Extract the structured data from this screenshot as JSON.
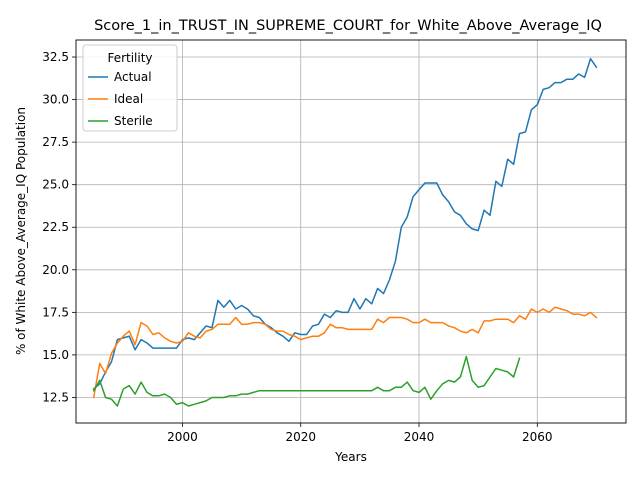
{
  "chart_data": {
    "type": "line",
    "title": "Score_1_in_TRUST_IN_SUPREME_COURT_for_White_Above_Average_IQ",
    "xlabel": "Years",
    "ylabel": "% of White Above_Average_IQ Population",
    "xlim": [
      1982,
      2075
    ],
    "ylim": [
      11.0,
      33.5
    ],
    "x_ticks": [
      2000,
      2020,
      2040,
      2060
    ],
    "y_ticks": [
      12.5,
      15.0,
      17.5,
      20.0,
      22.5,
      25.0,
      27.5,
      30.0,
      32.5
    ],
    "grid": true,
    "legend": {
      "title": "Fertility",
      "placement": "top-left"
    },
    "series": [
      {
        "name": "Actual",
        "color": "#1f77b4",
        "x": [
          1985,
          1986,
          1987,
          1988,
          1989,
          1990,
          1991,
          1992,
          1993,
          1994,
          1995,
          1996,
          1997,
          1998,
          1999,
          2000,
          2001,
          2002,
          2003,
          2004,
          2005,
          2006,
          2007,
          2008,
          2009,
          2010,
          2011,
          2012,
          2013,
          2014,
          2015,
          2016,
          2017,
          2018,
          2019,
          2020,
          2021,
          2022,
          2023,
          2024,
          2025,
          2026,
          2027,
          2028,
          2029,
          2030,
          2031,
          2032,
          2033,
          2034,
          2035,
          2036,
          2037,
          2038,
          2039,
          2040,
          2041,
          2042,
          2043,
          2044,
          2045,
          2046,
          2047,
          2048,
          2049,
          2050,
          2051,
          2052,
          2053,
          2054,
          2055,
          2056,
          2057,
          2058,
          2059,
          2060,
          2061,
          2062,
          2063,
          2064,
          2065,
          2066,
          2067,
          2068,
          2069,
          2070
        ],
        "values": [
          13.0,
          13.3,
          14.0,
          14.6,
          15.9,
          16.0,
          16.1,
          15.3,
          15.9,
          15.7,
          15.4,
          15.4,
          15.4,
          15.4,
          15.4,
          15.9,
          16.0,
          15.9,
          16.3,
          16.7,
          16.6,
          18.2,
          17.8,
          18.2,
          17.7,
          17.9,
          17.7,
          17.3,
          17.2,
          16.8,
          16.6,
          16.3,
          16.1,
          15.8,
          16.3,
          16.2,
          16.2,
          16.7,
          16.8,
          17.4,
          17.2,
          17.6,
          17.5,
          17.5,
          18.3,
          17.7,
          18.3,
          18.0,
          18.9,
          18.6,
          19.4,
          20.5,
          22.5,
          23.1,
          24.3,
          24.7,
          25.1,
          25.1,
          25.1,
          24.4,
          24.0,
          23.4,
          23.2,
          22.7,
          22.4,
          22.3,
          23.5,
          23.2,
          25.2,
          24.9,
          26.5,
          26.2,
          28.0,
          28.1,
          29.4,
          29.7,
          30.6,
          30.7,
          31.0,
          31.0,
          31.2,
          31.2,
          31.5,
          31.3,
          32.4,
          31.9
        ]
      },
      {
        "name": "Ideal",
        "color": "#ff7f0e",
        "x": [
          1985,
          1986,
          1987,
          1988,
          1989,
          1990,
          1991,
          1992,
          1993,
          1994,
          1995,
          1996,
          1997,
          1998,
          1999,
          2000,
          2001,
          2002,
          2003,
          2004,
          2005,
          2006,
          2007,
          2008,
          2009,
          2010,
          2011,
          2012,
          2013,
          2014,
          2015,
          2016,
          2017,
          2018,
          2019,
          2020,
          2021,
          2022,
          2023,
          2024,
          2025,
          2026,
          2027,
          2028,
          2029,
          2030,
          2031,
          2032,
          2033,
          2034,
          2035,
          2036,
          2037,
          2038,
          2039,
          2040,
          2041,
          2042,
          2043,
          2044,
          2045,
          2046,
          2047,
          2048,
          2049,
          2050,
          2051,
          2052,
          2053,
          2054,
          2055,
          2056,
          2057,
          2058,
          2059,
          2060,
          2061,
          2062,
          2063,
          2064,
          2065,
          2066,
          2067,
          2068,
          2069,
          2070
        ],
        "values": [
          12.5,
          14.5,
          13.9,
          15.1,
          15.7,
          16.1,
          16.4,
          15.6,
          16.9,
          16.7,
          16.2,
          16.3,
          16.0,
          15.8,
          15.7,
          15.8,
          16.3,
          16.1,
          16.0,
          16.4,
          16.5,
          16.8,
          16.8,
          16.8,
          17.2,
          16.8,
          16.8,
          16.9,
          16.9,
          16.8,
          16.5,
          16.4,
          16.4,
          16.2,
          16.1,
          15.9,
          16.0,
          16.1,
          16.1,
          16.3,
          16.8,
          16.6,
          16.6,
          16.5,
          16.5,
          16.5,
          16.5,
          16.5,
          17.1,
          16.9,
          17.2,
          17.2,
          17.2,
          17.1,
          16.9,
          16.9,
          17.1,
          16.9,
          16.9,
          16.9,
          16.7,
          16.6,
          16.4,
          16.3,
          16.5,
          16.3,
          17.0,
          17.0,
          17.1,
          17.1,
          17.1,
          16.9,
          17.3,
          17.1,
          17.7,
          17.5,
          17.7,
          17.5,
          17.8,
          17.7,
          17.6,
          17.4,
          17.4,
          17.3,
          17.5,
          17.2
        ]
      },
      {
        "name": "Sterile",
        "color": "#2ca02c",
        "x": [
          1985,
          1986,
          1987,
          1988,
          1989,
          1990,
          1991,
          1992,
          1993,
          1994,
          1995,
          1996,
          1997,
          1998,
          1999,
          2000,
          2001,
          2002,
          2003,
          2004,
          2005,
          2006,
          2007,
          2008,
          2009,
          2010,
          2011,
          2012,
          2013,
          2014,
          2015,
          2016,
          2017,
          2018,
          2019,
          2020,
          2021,
          2022,
          2023,
          2024,
          2025,
          2026,
          2027,
          2028,
          2029,
          2030,
          2031,
          2032,
          2033,
          2034,
          2035,
          2036,
          2037,
          2038,
          2039,
          2040,
          2041,
          2042,
          2043,
          2044,
          2045,
          2046,
          2047,
          2048,
          2049,
          2050,
          2051,
          2052,
          2053,
          2054,
          2055,
          2056,
          2057
        ],
        "values": [
          12.9,
          13.5,
          12.5,
          12.4,
          12.0,
          13.0,
          13.2,
          12.7,
          13.4,
          12.8,
          12.6,
          12.6,
          12.7,
          12.5,
          12.1,
          12.2,
          12.0,
          12.1,
          12.2,
          12.3,
          12.5,
          12.5,
          12.5,
          12.6,
          12.6,
          12.7,
          12.7,
          12.8,
          12.9,
          12.9,
          12.9,
          12.9,
          12.9,
          12.9,
          12.9,
          12.9,
          12.9,
          12.9,
          12.9,
          12.9,
          12.9,
          12.9,
          12.9,
          12.9,
          12.9,
          12.9,
          12.9,
          12.9,
          13.1,
          12.9,
          12.9,
          13.1,
          13.1,
          13.4,
          12.9,
          12.8,
          13.1,
          12.4,
          12.9,
          13.3,
          13.5,
          13.4,
          13.7,
          14.9,
          13.5,
          13.1,
          13.2,
          13.7,
          14.2,
          14.1,
          14.0,
          13.7,
          14.8
        ]
      }
    ]
  }
}
